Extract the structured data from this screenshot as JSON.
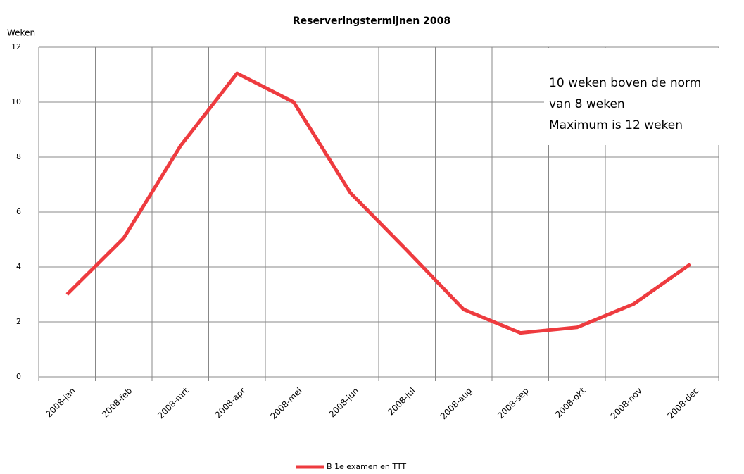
{
  "chart_data": {
    "type": "line",
    "title": "Reserveringstermijnen 2008",
    "y_label": "Weken",
    "categories": [
      "2008-jan",
      "2008-feb",
      "2008-mrt",
      "2008-apr",
      "2008-mei",
      "2008-jun",
      "2008-jul",
      "2008-aug",
      "2008-sep",
      "2008-okt",
      "2008-nov",
      "2008-dec"
    ],
    "series": [
      {
        "name": "B 1e examen en TTT",
        "color": "#ee3b3f",
        "values": [
          3.0,
          5.05,
          8.4,
          11.05,
          10.0,
          6.7,
          4.6,
          2.45,
          1.6,
          1.8,
          2.65,
          4.1
        ]
      }
    ],
    "ylim": [
      0,
      12
    ],
    "yticks": [
      0,
      2,
      4,
      6,
      8,
      10,
      12
    ],
    "grid": true,
    "legend": "bottom",
    "annotation": [
      "10 weken boven de norm",
      "van 8 weken",
      "Maximum is 12 weken"
    ]
  }
}
